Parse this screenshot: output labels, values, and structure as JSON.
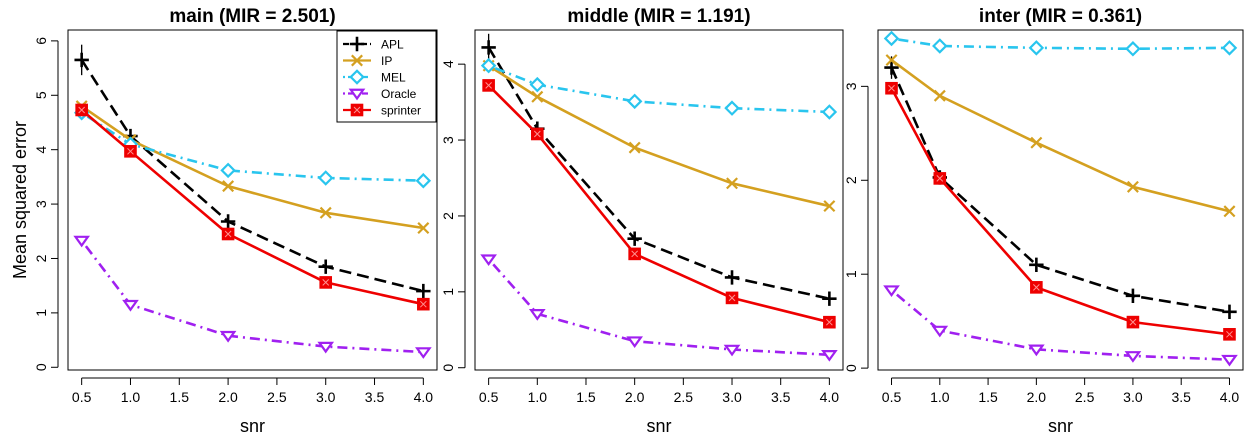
{
  "figure": {
    "ylabel": "Mean squared error"
  },
  "legend": {
    "placement": "top-right of first panel",
    "entries": [
      {
        "name": "APL",
        "color": "#000000",
        "marker": "plus",
        "line": "dashed"
      },
      {
        "name": "IP",
        "color": "#D4A020",
        "marker": "x",
        "line": "solid"
      },
      {
        "name": "MEL",
        "color": "#29C5EE",
        "marker": "diamond",
        "line": "dotdash"
      },
      {
        "name": "Oracle",
        "color": "#A020F0",
        "marker": "triangle-down",
        "line": "dotdash"
      },
      {
        "name": "sprinter",
        "color": "#EE0000",
        "marker": "square",
        "line": "solid"
      }
    ]
  },
  "chart_data": [
    {
      "type": "line",
      "title": "main (MIR = 2.501)",
      "xlabel": "snr",
      "ylabel": "Mean squared error",
      "x": [
        0.5,
        1.0,
        2.0,
        3.0,
        4.0
      ],
      "xticks": [
        "0.5",
        "1.0",
        "1.5",
        "2.0",
        "2.5",
        "3.0",
        "3.5",
        "4.0"
      ],
      "xtick_values": [
        0.5,
        1.0,
        1.5,
        2.0,
        2.5,
        3.0,
        3.5,
        4.0
      ],
      "yticks": [
        "0",
        "1",
        "2",
        "3",
        "4",
        "5",
        "6"
      ],
      "ytick_values": [
        0,
        1,
        2,
        3,
        4,
        5,
        6
      ],
      "ylim": [
        -0.05,
        6.2
      ],
      "grid": false,
      "series": [
        {
          "name": "APL",
          "values": [
            5.65,
            4.25,
            2.68,
            1.85,
            1.4
          ],
          "err": [
            0.28,
            0.1,
            0.08,
            0.06,
            0.05
          ]
        },
        {
          "name": "IP",
          "values": [
            4.8,
            4.18,
            3.33,
            2.84,
            2.56
          ]
        },
        {
          "name": "MEL",
          "values": [
            4.68,
            4.1,
            3.62,
            3.48,
            3.43
          ]
        },
        {
          "name": "Oracle",
          "values": [
            2.33,
            1.15,
            0.58,
            0.38,
            0.28
          ]
        },
        {
          "name": "sprinter",
          "values": [
            4.73,
            3.97,
            2.45,
            1.56,
            1.16
          ]
        }
      ]
    },
    {
      "type": "line",
      "title": "middle (MIR = 1.191)",
      "xlabel": "snr",
      "ylabel": "",
      "x": [
        0.5,
        1.0,
        2.0,
        3.0,
        4.0
      ],
      "xticks": [
        "0.5",
        "1.0",
        "1.5",
        "2.0",
        "2.5",
        "3.0",
        "3.5",
        "4.0"
      ],
      "xtick_values": [
        0.5,
        1.0,
        1.5,
        2.0,
        2.5,
        3.0,
        3.5,
        4.0
      ],
      "yticks": [
        "0",
        "1",
        "2",
        "3",
        "4"
      ],
      "ytick_values": [
        0,
        1,
        2,
        3,
        4
      ],
      "ylim": [
        -0.03,
        4.45
      ],
      "grid": false,
      "series": [
        {
          "name": "APL",
          "values": [
            4.22,
            3.15,
            1.7,
            1.19,
            0.91
          ],
          "err": [
            0.18,
            0.08,
            0.06,
            0.05,
            0.04
          ]
        },
        {
          "name": "IP",
          "values": [
            3.98,
            3.57,
            2.9,
            2.43,
            2.13
          ]
        },
        {
          "name": "MEL",
          "values": [
            3.98,
            3.73,
            3.51,
            3.42,
            3.37
          ]
        },
        {
          "name": "Oracle",
          "values": [
            1.43,
            0.71,
            0.35,
            0.24,
            0.17
          ]
        },
        {
          "name": "sprinter",
          "values": [
            3.72,
            3.08,
            1.5,
            0.92,
            0.6
          ]
        }
      ]
    },
    {
      "type": "line",
      "title": "inter (MIR = 0.361)",
      "xlabel": "snr",
      "ylabel": "",
      "x": [
        0.5,
        1.0,
        2.0,
        3.0,
        4.0
      ],
      "xticks": [
        "0.5",
        "1.0",
        "1.5",
        "2.0",
        "2.5",
        "3.0",
        "3.5",
        "4.0"
      ],
      "xtick_values": [
        0.5,
        1.0,
        1.5,
        2.0,
        2.5,
        3.0,
        3.5,
        4.0
      ],
      "yticks": [
        "0",
        "1",
        "2",
        "3"
      ],
      "ytick_values": [
        0,
        1,
        2,
        3
      ],
      "ylim": [
        -0.02,
        3.6
      ],
      "grid": false,
      "series": [
        {
          "name": "APL",
          "values": [
            3.2,
            2.03,
            1.1,
            0.77,
            0.6
          ],
          "err": [
            0.12,
            0.06,
            0.05,
            0.04,
            0.03
          ]
        },
        {
          "name": "IP",
          "values": [
            3.28,
            2.9,
            2.4,
            1.93,
            1.67
          ]
        },
        {
          "name": "MEL",
          "values": [
            3.51,
            3.43,
            3.41,
            3.4,
            3.41
          ]
        },
        {
          "name": "Oracle",
          "values": [
            0.83,
            0.4,
            0.2,
            0.13,
            0.09
          ]
        },
        {
          "name": "sprinter",
          "values": [
            2.98,
            2.02,
            0.86,
            0.49,
            0.36
          ]
        }
      ]
    }
  ]
}
